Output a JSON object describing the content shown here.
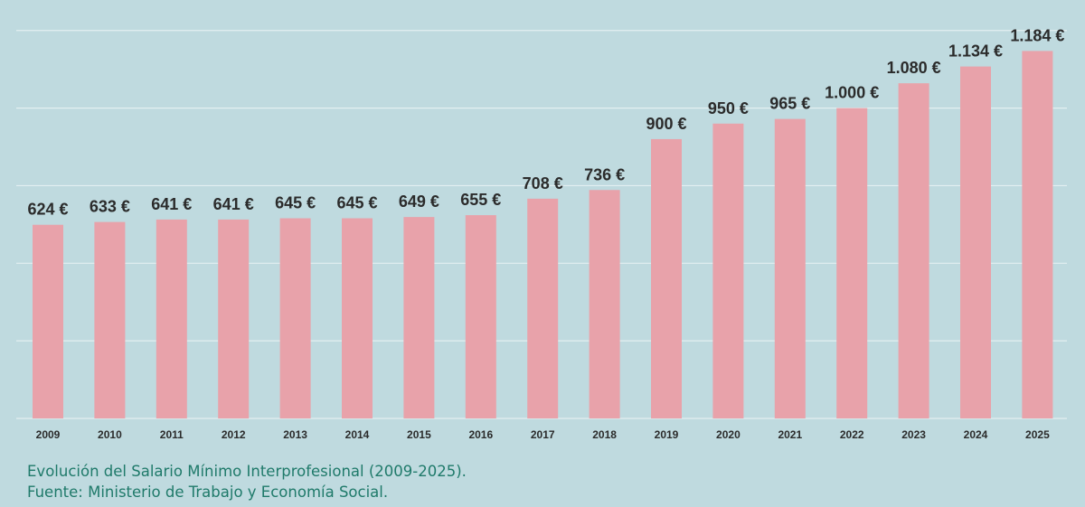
{
  "chart_data": {
    "type": "bar",
    "categories": [
      "2009",
      "2010",
      "2011",
      "2012",
      "2013",
      "2014",
      "2015",
      "2016",
      "2017",
      "2018",
      "2019",
      "2020",
      "2021",
      "2022",
      "2023",
      "2024",
      "2025"
    ],
    "values": [
      624,
      633,
      641,
      641,
      645,
      645,
      649,
      655,
      708,
      736,
      900,
      950,
      965,
      1000,
      1080,
      1134,
      1184
    ],
    "data_labels": [
      "624 €",
      "633 €",
      "641 €",
      "641 €",
      "645 €",
      "645 €",
      "649 €",
      "655 €",
      "708 €",
      "736 €",
      "900 €",
      "950 €",
      "965 €",
      "1.000 €",
      "1.080 €",
      "1.134 €",
      "1.184 €"
    ],
    "ylim": [
      0,
      1250
    ],
    "grid": true,
    "title": "",
    "xlabel": "",
    "ylabel": "",
    "bar_color": "#e8a2aa",
    "grid_color": "#e3eff1",
    "background": "#bfdadf"
  },
  "caption": {
    "line1": "Evolución del Salario Mínimo Interprofesional (2009-2025).",
    "line2": "Fuente: Ministerio de Trabajo y Economía Social."
  }
}
